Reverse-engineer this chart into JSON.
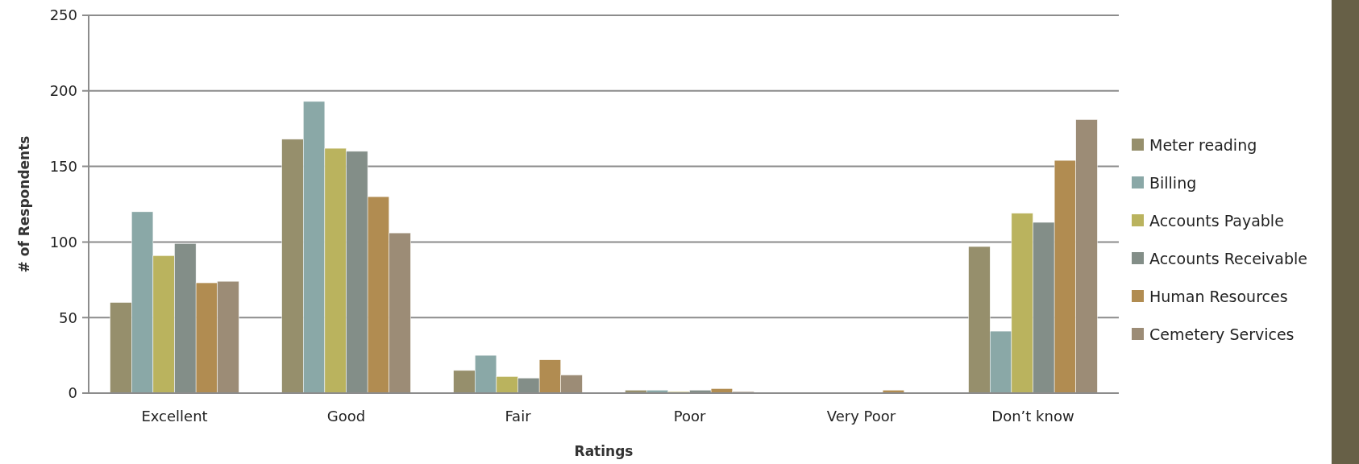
{
  "chart_data": {
    "type": "bar",
    "xlabel": "Ratings",
    "ylabel": "# of Respondents",
    "categories": [
      "Excellent",
      "Good",
      "Fair",
      "Poor",
      "Very Poor",
      "Don’t know"
    ],
    "series": [
      {
        "name": "Meter reading",
        "color": "#968f6c",
        "values": [
          60,
          168,
          15,
          2,
          0,
          97
        ]
      },
      {
        "name": "Billing",
        "color": "#8aa8a7",
        "values": [
          120,
          193,
          25,
          2,
          0,
          41
        ]
      },
      {
        "name": "Accounts Payable",
        "color": "#bab35e",
        "values": [
          91,
          162,
          11,
          1,
          0,
          119
        ]
      },
      {
        "name": "Accounts Receivable",
        "color": "#838e88",
        "values": [
          99,
          160,
          10,
          2,
          0,
          113
        ]
      },
      {
        "name": "Human Resources",
        "color": "#b18c51",
        "values": [
          73,
          130,
          22,
          3,
          2,
          154
        ]
      },
      {
        "name": "Cemetery Services",
        "color": "#9c8c76",
        "values": [
          74,
          106,
          12,
          1,
          0,
          181
        ]
      }
    ],
    "ylim": [
      0,
      250
    ],
    "yticks": [
      0,
      50,
      100,
      150,
      200,
      250
    ],
    "grid": "y",
    "legend": "right"
  }
}
